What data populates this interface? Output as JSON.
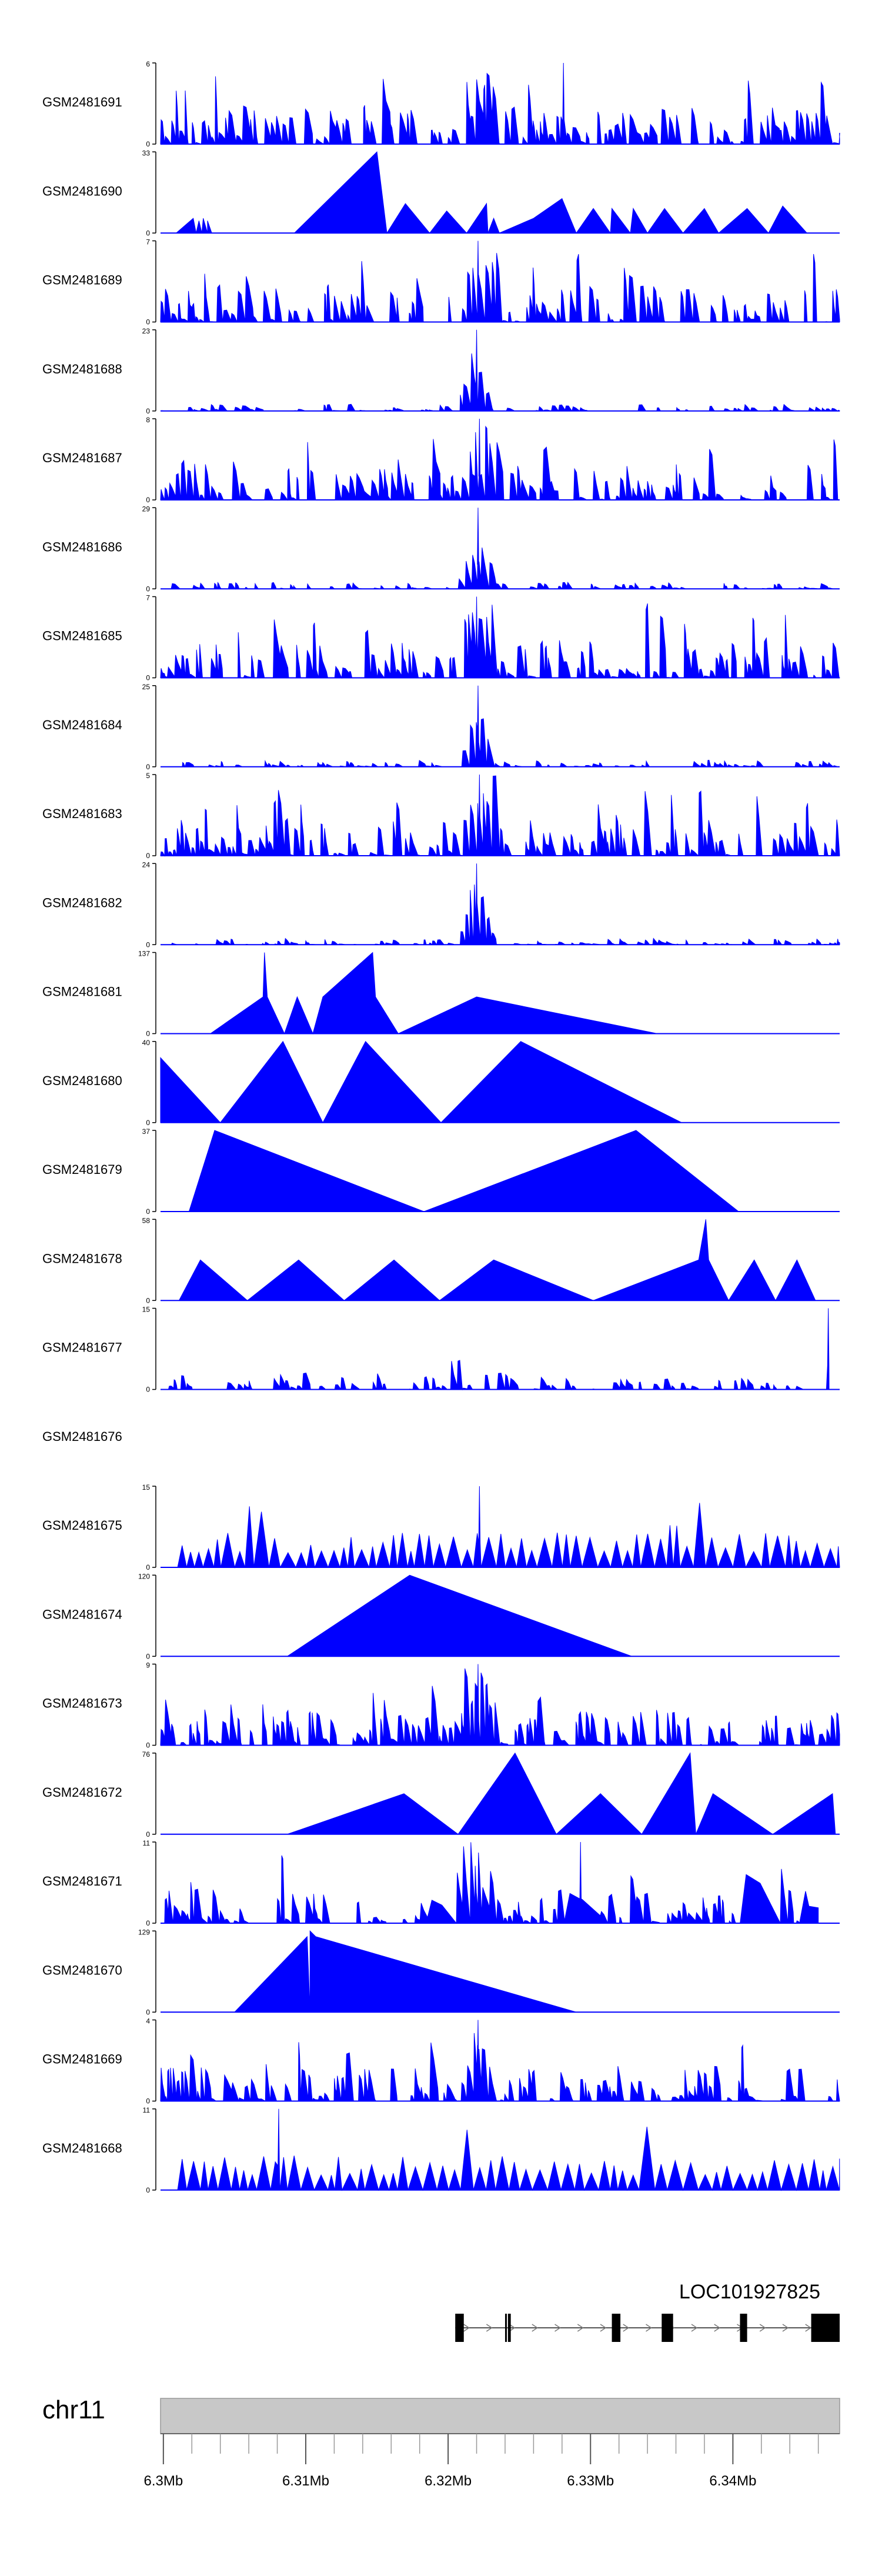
{
  "chart_data": {
    "type": "area",
    "title": "",
    "x_unit": "Mb",
    "xlim": [
      6.2998,
      6.3475
    ],
    "tracks": [
      {
        "name": "GSM2481691",
        "ymax": "6",
        "ymin": "0",
        "max_value": 6,
        "seed": 11,
        "style": "dense",
        "peak_at": 6.3281,
        "peak_value": 6
      },
      {
        "name": "GSM2481690",
        "ymax": "33",
        "ymin": "0",
        "max_value": 33,
        "points": [
          [
            6.3009,
            0
          ],
          [
            6.3021,
            6
          ],
          [
            6.3023,
            0
          ],
          [
            6.3025,
            5
          ],
          [
            6.3027,
            0
          ],
          [
            6.3028,
            6
          ],
          [
            6.3031,
            0
          ],
          [
            6.3031,
            5
          ],
          [
            6.3034,
            0
          ],
          [
            6.3092,
            0
          ],
          [
            6.315,
            33
          ],
          [
            6.3157,
            0
          ],
          [
            6.317,
            12
          ],
          [
            6.3187,
            0
          ],
          [
            6.3199,
            9
          ],
          [
            6.3213,
            0
          ],
          [
            6.3227,
            12
          ],
          [
            6.3228,
            0
          ],
          [
            6.3232,
            6
          ],
          [
            6.3236,
            0
          ],
          [
            6.326,
            6
          ],
          [
            6.328,
            14
          ],
          [
            6.329,
            0
          ],
          [
            6.3302,
            10
          ],
          [
            6.3314,
            0
          ],
          [
            6.3315,
            10
          ],
          [
            6.3328,
            0
          ],
          [
            6.333,
            10
          ],
          [
            6.334,
            0
          ],
          [
            6.3352,
            10
          ],
          [
            6.3365,
            0
          ],
          [
            6.338,
            10
          ],
          [
            6.339,
            0
          ],
          [
            6.341,
            10
          ],
          [
            6.3425,
            0
          ],
          [
            6.3435,
            11
          ],
          [
            6.3452,
            0
          ]
        ]
      },
      {
        "name": "GSM2481689",
        "ymax": "7",
        "ymin": "0",
        "max_value": 7,
        "seed": 23,
        "style": "dense",
        "peak_at": 6.3221,
        "peak_value": 7
      },
      {
        "name": "GSM2481688",
        "ymax": "23",
        "ymin": "0",
        "max_value": 23,
        "seed": 31,
        "style": "lowpeak",
        "peak_at": 6.322,
        "peak_value": 23
      },
      {
        "name": "GSM2481687",
        "ymax": "8",
        "ymin": "0",
        "max_value": 8,
        "seed": 37,
        "style": "dense",
        "peak_at": 6.3222,
        "peak_value": 8
      },
      {
        "name": "GSM2481686",
        "ymax": "29",
        "ymin": "0",
        "max_value": 29,
        "seed": 41,
        "style": "lowpeak",
        "peak_at": 6.3221,
        "peak_value": 29
      },
      {
        "name": "GSM2481685",
        "ymax": "7",
        "ymin": "0",
        "max_value": 7,
        "seed": 43,
        "style": "dense",
        "peak_at": 6.322,
        "peak_value": 7
      },
      {
        "name": "GSM2481684",
        "ymax": "25",
        "ymin": "0",
        "max_value": 25,
        "seed": 47,
        "style": "lowpeak",
        "peak_at": 6.3221,
        "peak_value": 25
      },
      {
        "name": "GSM2481683",
        "ymax": "5",
        "ymin": "0",
        "max_value": 5,
        "seed": 53,
        "style": "dense",
        "peak_at": 6.3222,
        "peak_value": 5
      },
      {
        "name": "GSM2481682",
        "ymax": "24",
        "ymin": "0",
        "max_value": 24,
        "seed": 59,
        "style": "lowpeak",
        "peak_at": 6.322,
        "peak_value": 24
      },
      {
        "name": "GSM2481681",
        "ymax": "137",
        "ymin": "0",
        "max_value": 137,
        "points": [
          [
            6.3033,
            0
          ],
          [
            6.307,
            62
          ],
          [
            6.3071,
            137
          ],
          [
            6.3073,
            62
          ],
          [
            6.3085,
            0
          ],
          [
            6.3094,
            62
          ],
          [
            6.3105,
            0
          ],
          [
            6.3112,
            62
          ],
          [
            6.3147,
            137
          ],
          [
            6.3149,
            62
          ],
          [
            6.3165,
            0
          ],
          [
            6.322,
            62
          ],
          [
            6.3347,
            0
          ]
        ]
      },
      {
        "name": "GSM2481680",
        "ymax": "40",
        "ymin": "0",
        "max_value": 40,
        "points": [
          [
            6.2998,
            0
          ],
          [
            6.2998,
            32
          ],
          [
            6.304,
            0
          ],
          [
            6.3084,
            40
          ],
          [
            6.3112,
            0
          ],
          [
            6.3142,
            40
          ],
          [
            6.3195,
            0
          ],
          [
            6.3251,
            40
          ],
          [
            6.3364,
            0
          ]
        ]
      },
      {
        "name": "GSM2481679",
        "ymax": "37",
        "ymin": "0",
        "max_value": 37,
        "points": [
          [
            6.3018,
            0
          ],
          [
            6.3036,
            37
          ],
          [
            6.3183,
            0
          ],
          [
            6.3332,
            37
          ],
          [
            6.3404,
            0
          ]
        ]
      },
      {
        "name": "GSM2481678",
        "ymax": "58",
        "ymin": "0",
        "max_value": 58,
        "points": [
          [
            6.3011,
            0
          ],
          [
            6.3026,
            29
          ],
          [
            6.3059,
            0
          ],
          [
            6.3095,
            29
          ],
          [
            6.3127,
            0
          ],
          [
            6.3162,
            29
          ],
          [
            6.3194,
            0
          ],
          [
            6.3232,
            29
          ],
          [
            6.3302,
            0
          ],
          [
            6.3376,
            29
          ],
          [
            6.3381,
            58
          ],
          [
            6.3383,
            29
          ],
          [
            6.3397,
            0
          ],
          [
            6.3415,
            29
          ],
          [
            6.343,
            0
          ],
          [
            6.3445,
            29
          ],
          [
            6.3458,
            0
          ]
        ]
      },
      {
        "name": "GSM2481677",
        "ymax": "15",
        "ymin": "0",
        "max_value": 15,
        "seed": 61,
        "style": "sparse_tail",
        "peak_at": 6.3467,
        "peak_value": 15
      },
      {
        "name": "GSM2481676",
        "empty": true
      },
      {
        "name": "GSM2481675",
        "ymax": "15",
        "ymin": "0",
        "max_value": 15,
        "seed": 67,
        "style": "small_triangles",
        "peak_at": 6.3222,
        "peak_value": 15
      },
      {
        "name": "GSM2481674",
        "ymax": "120",
        "ymin": "0",
        "max_value": 120,
        "points": [
          [
            6.3087,
            0
          ],
          [
            6.3173,
            120
          ],
          [
            6.3329,
            0
          ]
        ]
      },
      {
        "name": "GSM2481673",
        "ymax": "9",
        "ymin": "0",
        "max_value": 9,
        "seed": 71,
        "style": "dense",
        "peak_at": 6.3221,
        "peak_value": 9
      },
      {
        "name": "GSM2481672",
        "ymax": "76",
        "ymin": "0",
        "max_value": 76,
        "points": [
          [
            6.3087,
            0
          ],
          [
            6.3169,
            38
          ],
          [
            6.3207,
            0
          ],
          [
            6.3247,
            76
          ],
          [
            6.3276,
            0
          ],
          [
            6.3307,
            38
          ],
          [
            6.3336,
            0
          ],
          [
            6.337,
            76
          ],
          [
            6.3374,
            0
          ],
          [
            6.3386,
            38
          ],
          [
            6.3428,
            0
          ],
          [
            6.347,
            38
          ],
          [
            6.3472,
            0
          ]
        ]
      },
      {
        "name": "GSM2481671",
        "ymax": "11",
        "ymin": "0",
        "max_value": 11,
        "seed": 73,
        "style": "dense_gaps",
        "peak_at": 6.3293,
        "peak_value": 11
      },
      {
        "name": "GSM2481670",
        "ymax": "129",
        "ymin": "0",
        "max_value": 129,
        "points": [
          [
            6.305,
            0
          ],
          [
            6.3101,
            120
          ],
          [
            6.3103,
            0
          ],
          [
            6.3103,
            129
          ],
          [
            6.3107,
            120
          ],
          [
            6.329,
            0
          ]
        ]
      },
      {
        "name": "GSM2481669",
        "ymax": "4",
        "ymin": "0",
        "max_value": 4,
        "seed": 79,
        "style": "dense",
        "peak_at": 6.3221,
        "peak_value": 4
      },
      {
        "name": "GSM2481668",
        "ymax": "11",
        "ymin": "0",
        "max_value": 11,
        "seed": 83,
        "style": "small_triangles",
        "peak_at": 6.3081,
        "peak_value": 11
      }
    ],
    "gene": {
      "name": "LOC101927825",
      "start": 6.3205,
      "end": 6.3475,
      "exons": [
        [
          6.3205,
          6.3211
        ],
        [
          6.324,
          6.3241
        ],
        [
          6.3242,
          6.3244
        ],
        [
          6.3315,
          6.3321
        ],
        [
          6.335,
          6.3358
        ],
        [
          6.3405,
          6.341
        ],
        [
          6.3455,
          6.3475
        ]
      ]
    },
    "chromosome": {
      "label": "chr11",
      "ticks": [
        {
          "value": 6.3,
          "label": "6.3Mb"
        },
        {
          "value": 6.31,
          "label": "6.31Mb"
        },
        {
          "value": 6.32,
          "label": "6.32Mb"
        },
        {
          "value": 6.33,
          "label": "6.33Mb"
        },
        {
          "value": 6.34,
          "label": "6.34Mb"
        }
      ],
      "minor_step": 0.002
    },
    "colors": {
      "fill": "#0000ff",
      "axis": "#000000",
      "ideogram": "#c8c8c8"
    }
  }
}
